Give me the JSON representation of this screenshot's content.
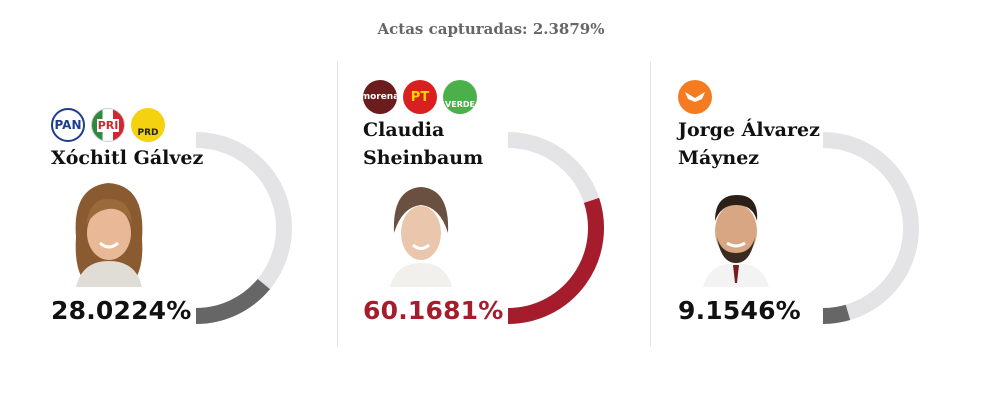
{
  "header": {
    "label": "Actas capturadas:",
    "value": "2.3879%"
  },
  "candidates": [
    {
      "name_line1": "Xóchitl Gálvez",
      "name_line2": "",
      "percent": "28.0224%",
      "share": 0.280224,
      "bar_color": "#666666",
      "pct_color": "#111111",
      "parties": [
        {
          "label": "PAN",
          "icon": "pan-logo"
        },
        {
          "label": "PRI",
          "icon": "pri-logo"
        },
        {
          "label": "PRD",
          "icon": "prd-logo"
        }
      ]
    },
    {
      "name_line1": "Claudia",
      "name_line2": "Sheinbaum",
      "percent": "60.1681%",
      "share": 0.601681,
      "bar_color": "#a51d2c",
      "pct_color": "#a51d2c",
      "parties": [
        {
          "label": "morena",
          "icon": "morena-logo"
        },
        {
          "label": "PT",
          "icon": "pt-logo"
        },
        {
          "label": "VERDE",
          "icon": "verde-logo"
        }
      ]
    },
    {
      "name_line1": "Jorge Álvarez",
      "name_line2": "Máynez",
      "percent": "9.1546%",
      "share": 0.091546,
      "bar_color": "#666666",
      "pct_color": "#111111",
      "parties": [
        {
          "label": "",
          "icon": "movimiento-ciudadano-logo"
        }
      ]
    }
  ],
  "colors": {
    "track": "#e4e4e6",
    "header_text": "#666666"
  }
}
